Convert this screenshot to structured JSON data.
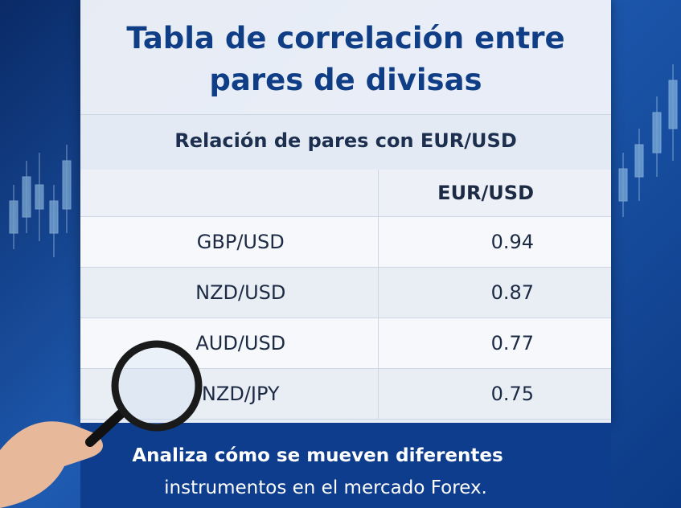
{
  "header": {
    "title": "Tabla de correlación entre pares de divisas",
    "subtitle": "Relación de pares con EUR/USD"
  },
  "table": {
    "column_header": "EUR/USD",
    "rows": [
      [
        "GBP/USD",
        0.94
      ],
      [
        "NZD/USD",
        0.87
      ],
      [
        "AUD/USD",
        0.77
      ],
      [
        "NZD/JPY",
        0.75
      ]
    ]
  },
  "footer": {
    "line1": "Analiza cómo se mueven diferentes",
    "line2": "instrumentos en el mercado Forex."
  }
}
